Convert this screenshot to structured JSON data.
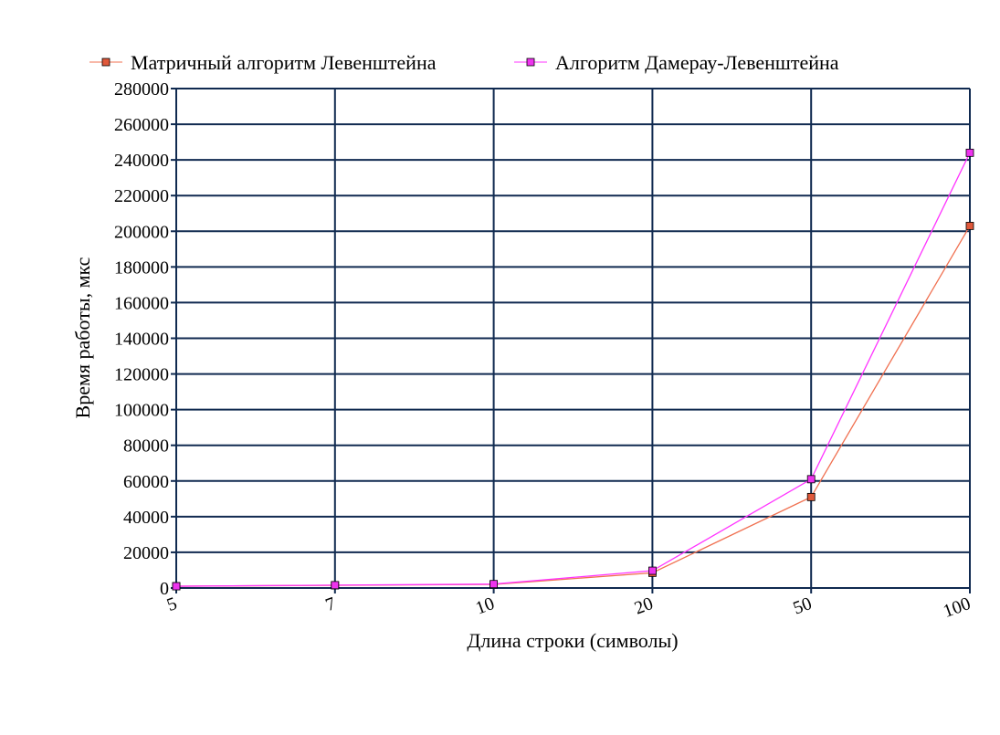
{
  "chart_data": {
    "type": "line",
    "categories": [
      "5",
      "7",
      "10",
      "20",
      "50",
      "100"
    ],
    "series": [
      {
        "name": "Матричный алгоритм Левенштейна",
        "values": [
          1000,
          1500,
          2000,
          8500,
          51000,
          203000
        ],
        "color": "#f07050",
        "marker_color": "#e0583a"
      },
      {
        "name": "Алгоритм Дамерау-Левенштейна",
        "values": [
          1000,
          1600,
          2200,
          9700,
          61000,
          244000
        ],
        "color": "#ff33ff",
        "marker_color": "#ee33ee"
      }
    ],
    "xlabel": "Длина строки (символы)",
    "ylabel": "Время работы, мкс",
    "ylim": [
      0,
      280000
    ],
    "yticks": [
      "0",
      "20000",
      "40000",
      "60000",
      "80000",
      "100000",
      "120000",
      "140000",
      "160000",
      "180000",
      "200000",
      "220000",
      "240000",
      "260000",
      "280000"
    ],
    "grid": true,
    "grid_color": "#102a50",
    "legend_position": "top"
  }
}
